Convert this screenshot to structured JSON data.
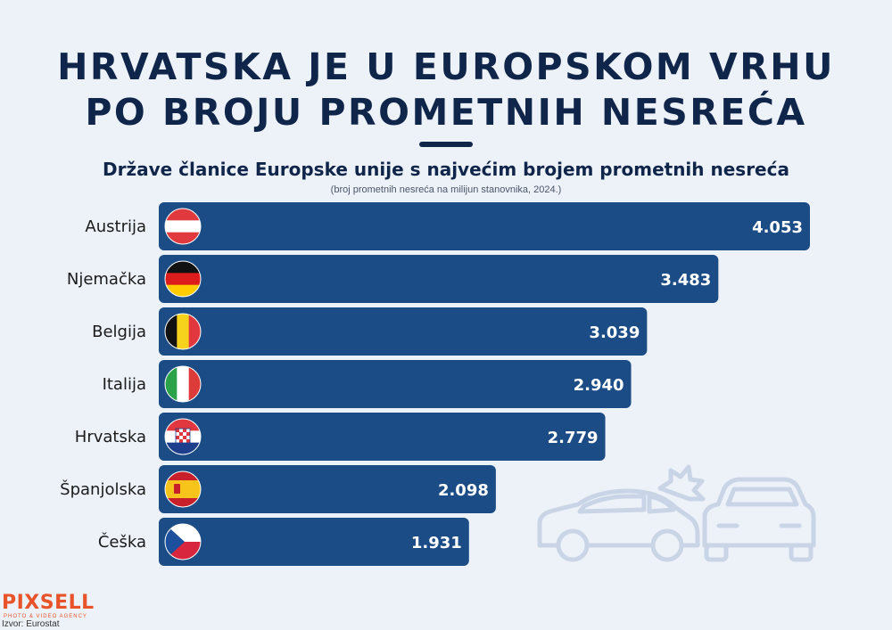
{
  "header": {
    "title_line1": "HRVATSKA JE U EUROPSKOM VRHU",
    "title_line2": "PO BROJU PROMETNIH NESREĆA",
    "subtitle": "Države članice Europske unije s najvećim brojem prometnih nesreća",
    "subnote": "(broj prometnih nesreća na milijun stanovnika, 2024.)"
  },
  "chart_data": {
    "type": "bar",
    "orientation": "horizontal",
    "categories": [
      "Austrija",
      "Njemačka",
      "Belgija",
      "Italija",
      "Hrvatska",
      "Španjolska",
      "Češka"
    ],
    "values": [
      4053,
      3483,
      3039,
      2940,
      2779,
      2098,
      1931
    ],
    "value_labels": [
      "4.053",
      "3.483",
      "3.039",
      "2.940",
      "2.779",
      "2.098",
      "1.931"
    ],
    "flags": [
      "austria-flag",
      "germany-flag",
      "belgium-flag",
      "italy-flag",
      "croatia-flag",
      "spain-flag",
      "czechia-flag"
    ],
    "bar_color": "#1b4c86",
    "xlim": [
      0,
      4053
    ],
    "grid": false,
    "legend": "none"
  },
  "footer": {
    "logo": "PIXSELL",
    "logo_tagline": "PHOTO & VIDEO AGENCY",
    "source": "Izvor: Eurostat"
  },
  "decoration": {
    "icon": "car-crash-icon"
  }
}
